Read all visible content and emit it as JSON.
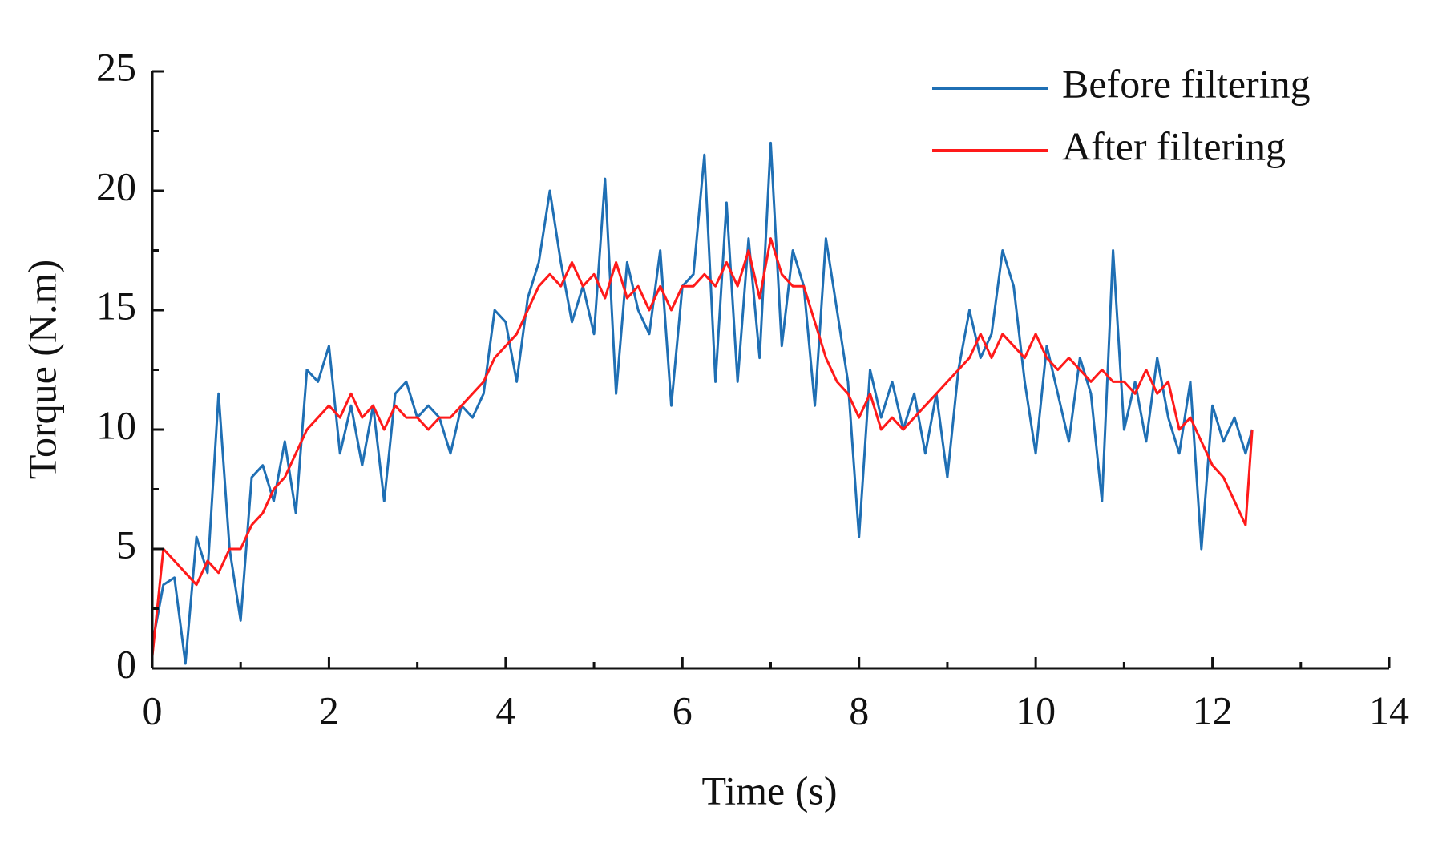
{
  "chart_data": {
    "type": "line",
    "xlabel": "Time (s)",
    "ylabel": "Torque (N.m)",
    "x": [
      0,
      0.125,
      0.25,
      0.375,
      0.5,
      0.625,
      0.75,
      0.875,
      1,
      1.125,
      1.25,
      1.375,
      1.5,
      1.625,
      1.75,
      1.875,
      2,
      2.125,
      2.25,
      2.375,
      2.5,
      2.625,
      2.75,
      2.875,
      3,
      3.125,
      3.25,
      3.375,
      3.5,
      3.625,
      3.75,
      3.875,
      4,
      4.125,
      4.25,
      4.375,
      4.5,
      4.625,
      4.75,
      4.875,
      5,
      5.125,
      5.25,
      5.375,
      5.5,
      5.625,
      5.75,
      5.875,
      6,
      6.125,
      6.25,
      6.375,
      6.5,
      6.625,
      6.75,
      6.875,
      7,
      7.125,
      7.25,
      7.375,
      7.5,
      7.625,
      7.75,
      7.875,
      8,
      8.125,
      8.25,
      8.375,
      8.5,
      8.625,
      8.75,
      8.875,
      9,
      9.125,
      9.25,
      9.375,
      9.5,
      9.625,
      9.75,
      9.875,
      10,
      10.125,
      10.25,
      10.375,
      10.5,
      10.625,
      10.75,
      10.875,
      11,
      11.125,
      11.25,
      11.375,
      11.5,
      11.625,
      11.75,
      11.875,
      12,
      12.125,
      12.25,
      12.375,
      12.45
    ],
    "series": [
      {
        "name": "Before filtering",
        "color": "#1f6fb4",
        "values": [
          1,
          3.5,
          3.8,
          0.2,
          5.5,
          4,
          11.5,
          5,
          2,
          8,
          8.5,
          7,
          9.5,
          6.5,
          12.5,
          12,
          13.5,
          9,
          11,
          8.5,
          11,
          7,
          11.5,
          12,
          10.5,
          11,
          10.5,
          9,
          11,
          10.5,
          11.5,
          15,
          14.5,
          12,
          15.5,
          17,
          20,
          17,
          14.5,
          16,
          14,
          20.5,
          11.5,
          17,
          15,
          14,
          17.5,
          11,
          16,
          16.5,
          21.5,
          12,
          19.5,
          12,
          18,
          13,
          22,
          13.5,
          17.5,
          16,
          11,
          18,
          15,
          12,
          5.5,
          12.5,
          10.5,
          12,
          10,
          11.5,
          9,
          11.5,
          8,
          12.5,
          15,
          13,
          14,
          17.5,
          16,
          12,
          9,
          13.5,
          11.5,
          9.5,
          13,
          11.5,
          7,
          17.5,
          10,
          12,
          9.5,
          13,
          10.5,
          9,
          12,
          5,
          11,
          9.5,
          10.5,
          9,
          10
        ]
      },
      {
        "name": "After filtering",
        "color": "#ff1a1a",
        "values": [
          0.5,
          5,
          4.5,
          4,
          3.5,
          4.5,
          4,
          5,
          5,
          6,
          6.5,
          7.5,
          8,
          9,
          10,
          10.5,
          11,
          10.5,
          11.5,
          10.5,
          11,
          10,
          11,
          10.5,
          10.5,
          10,
          10.5,
          10.5,
          11,
          11.5,
          12,
          13,
          13.5,
          14,
          15,
          16,
          16.5,
          16,
          17,
          16,
          16.5,
          15.5,
          17,
          15.5,
          16,
          15,
          16,
          15,
          16,
          16,
          16.5,
          16,
          17,
          16,
          17.5,
          15.5,
          18,
          16.5,
          16,
          16,
          14.5,
          13,
          12,
          11.5,
          10.5,
          11.5,
          10,
          10.5,
          10,
          10.5,
          11,
          11.5,
          12,
          12.5,
          13,
          14,
          13,
          14,
          13.5,
          13,
          14,
          13,
          12.5,
          13,
          12.5,
          12,
          12.5,
          12,
          12,
          11.5,
          12.5,
          11.5,
          12,
          10,
          10.5,
          9.5,
          8.5,
          8,
          7,
          6,
          10
        ]
      }
    ],
    "xlim": [
      0,
      14
    ],
    "xticks": [
      0,
      2,
      4,
      6,
      8,
      10,
      12,
      14
    ],
    "xminorticks": [
      1,
      3,
      5,
      7,
      9,
      11,
      13
    ],
    "ylim": [
      0,
      25
    ],
    "yticks": [
      0,
      5,
      10,
      15,
      20,
      25
    ],
    "yminorticks": [
      2.5,
      7.5,
      12.5,
      17.5,
      22.5
    ],
    "legend": "upper right"
  }
}
